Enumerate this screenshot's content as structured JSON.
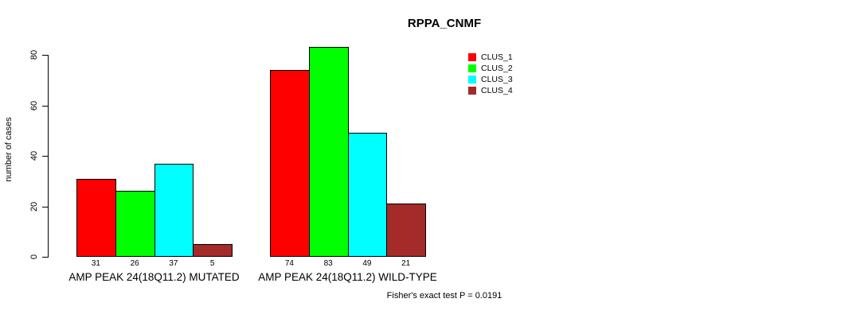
{
  "chart_data": {
    "type": "bar",
    "title": "RPPA_CNMF",
    "ylabel": "number of cases",
    "xlabel": "",
    "ylim": [
      0,
      80
    ],
    "yticks": [
      0,
      20,
      40,
      60,
      80
    ],
    "grid": false,
    "legend_position": "right",
    "categories": [
      "AMP PEAK 24(18Q11.2) MUTATED",
      "AMP PEAK 24(18Q11.2) WILD-TYPE"
    ],
    "series": [
      {
        "name": "CLUS_1",
        "color": "#ff0000",
        "values": [
          31,
          74
        ]
      },
      {
        "name": "CLUS_2",
        "color": "#00ff00",
        "values": [
          26,
          83
        ]
      },
      {
        "name": "CLUS_3",
        "color": "#00ffff",
        "values": [
          37,
          49
        ]
      },
      {
        "name": "CLUS_4",
        "color": "#a52a2a",
        "values": [
          5,
          21
        ]
      }
    ],
    "bar_value_labels": [
      [
        31,
        26,
        37,
        5
      ],
      [
        74,
        83,
        49,
        21
      ]
    ],
    "annotation": "Fisher's exact test P = 0.0191"
  },
  "colors": {
    "background": "#ffffff",
    "axis": "#000000",
    "bar_border": "#000000",
    "text": "#000000"
  }
}
